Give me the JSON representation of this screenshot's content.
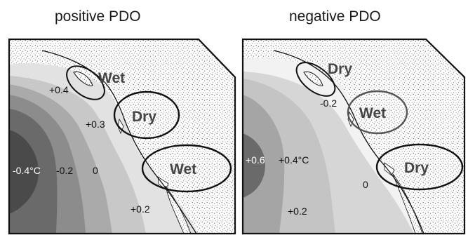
{
  "panels": [
    {
      "title": "positive PDO",
      "zones": [
        "Wet",
        "Dry",
        "Wet"
      ],
      "anomalies": [
        "+0.4",
        "+0.3",
        "-0.4°C",
        "-0.2",
        "0",
        "+0.2"
      ]
    },
    {
      "title": "negative PDO",
      "zones": [
        "Dry",
        "Wet",
        "Dry"
      ],
      "anomalies": [
        "-0.2",
        "+0.6",
        "+0.4°C",
        "0",
        "+0.2"
      ]
    }
  ],
  "colors": {
    "land": "#ffffff",
    "land_stipple": "#555555",
    "outline": "#111111",
    "left_ocean_levels": [
      "#4a4a4a",
      "#6a6a6a",
      "#8c8c8c",
      "#aaaaaa",
      "#c8c8c8",
      "#e2e2e2"
    ],
    "right_ocean_levels": [
      "#6a6a6a",
      "#a5a5a5",
      "#c4c4c4",
      "#d6d6d6",
      "#f2f2f2"
    ]
  }
}
